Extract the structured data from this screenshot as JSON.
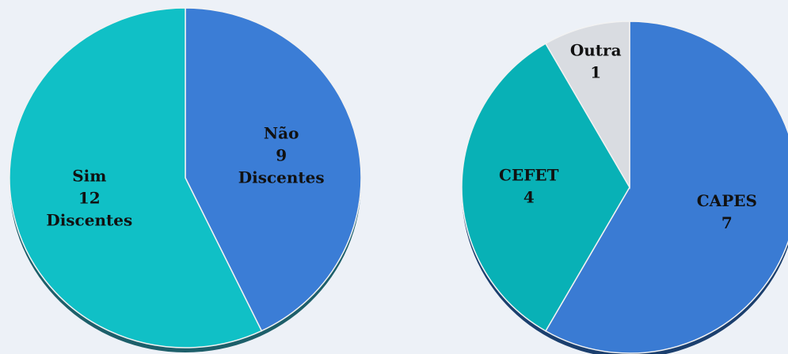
{
  "chart_data": [
    {
      "type": "pie",
      "categories": [
        "Não",
        "Sim"
      ],
      "values": [
        9,
        12
      ],
      "unit": "Discentes",
      "colors": [
        "#3b7dd6",
        "#10c0c6"
      ]
    },
    {
      "type": "pie",
      "categories": [
        "CAPES",
        "CEFET",
        "Outra"
      ],
      "values": [
        7,
        4,
        1
      ],
      "colors": [
        "#3a7bd3",
        "#08b1b6",
        "#d9dce1"
      ]
    }
  ]
}
